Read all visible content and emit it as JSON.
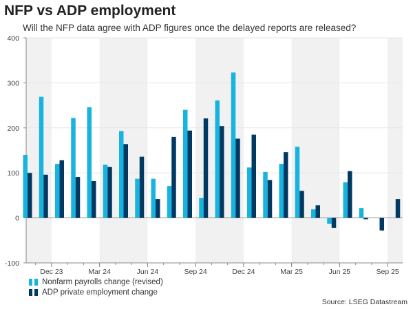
{
  "chart_data": {
    "type": "bar",
    "title": "NFP vs ADP employment",
    "subtitle": "Will the NFP data agree with ADP figures once the delayed reports are released?",
    "categories": [
      "Oct 23",
      "Nov 23",
      "Dec 23",
      "Jan 24",
      "Feb 24",
      "Mar 24",
      "Apr 24",
      "May 24",
      "Jun 24",
      "Jul 24",
      "Aug 24",
      "Sep 24",
      "Oct 24",
      "Nov 24",
      "Dec 24",
      "Jan 25",
      "Feb 25",
      "Mar 25",
      "Apr 25",
      "May 25",
      "Jun 25",
      "Jul 25",
      "Aug 25",
      "Sep 25"
    ],
    "xtick_labels": [
      "Dec 23",
      "Mar 24",
      "Jun 24",
      "Sep 24",
      "Dec 24",
      "Mar 25",
      "Jun 25",
      "Sep 25"
    ],
    "xtick_months": [
      "Dec 23",
      "Mar 24",
      "Jun 24",
      "Sep 24",
      "Dec 24",
      "Mar 25",
      "Jun 25",
      "Sep 25"
    ],
    "ylim": [
      -100,
      400
    ],
    "yticks": [
      -100,
      0,
      100,
      200,
      300,
      400
    ],
    "series": [
      {
        "name": "Nonfarm payrolls change (revised)",
        "color": "#16b4de",
        "values": [
          140,
          269,
          120,
          222,
          246,
          118,
          193,
          87,
          87,
          71,
          240,
          44,
          261,
          323,
          112,
          102,
          120,
          158,
          19,
          -13,
          79,
          22,
          null,
          null
        ]
      },
      {
        "name": "ADP private employment change",
        "color": "#003a63",
        "values": [
          100,
          96,
          128,
          91,
          82,
          113,
          164,
          136,
          42,
          180,
          194,
          221,
          204,
          176,
          185,
          84,
          146,
          60,
          28,
          -22,
          104,
          -3,
          -28,
          42
        ]
      }
    ],
    "shaded_quarters": true,
    "legend_position": "bottom-left",
    "source": "Source: LSEG Datastream"
  }
}
